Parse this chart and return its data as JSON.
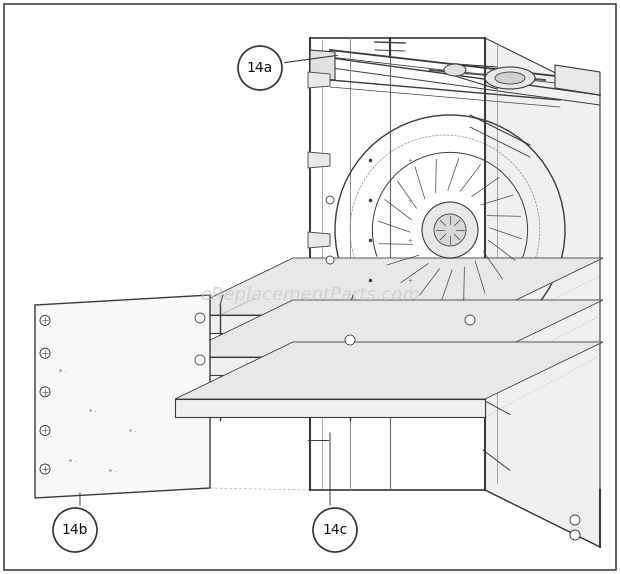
{
  "background_color": "#ffffff",
  "watermark_text": "eReplacementParts.com",
  "watermark_color": "#c8c8c8",
  "watermark_fontsize": 13,
  "label_14a": "14a",
  "label_14b": "14b",
  "label_14c": "14c",
  "label_fontsize": 10,
  "line_color": "#3a3a3a",
  "light_line_color": "#888888",
  "fig_width": 6.2,
  "fig_height": 5.74
}
